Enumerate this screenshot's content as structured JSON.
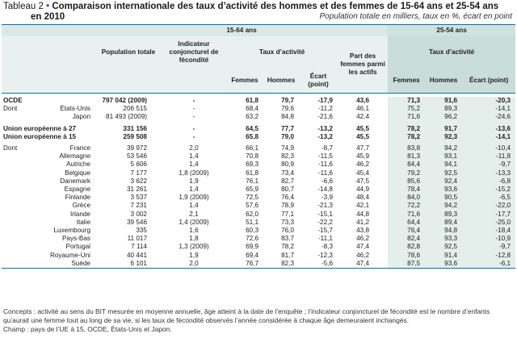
{
  "title": {
    "label": "Tableau 2",
    "bullet": "•",
    "text": "Comparaison internationale des taux d’activité des hommes et des femmes de 15-64 ans et 25-54 ans",
    "text2": "en 2010",
    "subtitle": "Population totale en milliers, taux en %, écart en point"
  },
  "headers": {
    "group1": "15-64 ans",
    "group2": "25-54 ans",
    "population": "Population totale",
    "indicateur": "Indicateur conjoncturel de fécondité",
    "taux": "Taux d’activité",
    "part": "Part des femmes parmi les actifs",
    "taux2": "Taux d’activité",
    "femmes": "Femmes",
    "hommes": "Hommes",
    "ecart": "Écart (point)",
    "femmes2": "Femmes",
    "hommes2": "Hommes",
    "ecart2": "Écart (point)"
  },
  "rows": [
    {
      "prefix": "OCDE",
      "label": "",
      "pop": "797 042 (2009)",
      "icf": "-",
      "f": "61,8",
      "h": "79,7",
      "e": "-17,9",
      "p": "43,6",
      "f2": "71,3",
      "h2": "91,6",
      "e2": "-20,3",
      "bold": true
    },
    {
      "prefix": "Dont :",
      "label": "États-Unis",
      "pop": "206 515",
      "icf": "-",
      "f": "68,4",
      "h": "79,6",
      "e": "-11,2",
      "p": "46,1",
      "f2": "75,2",
      "h2": "89,3",
      "e2": "-14,1",
      "bold": false
    },
    {
      "prefix": "",
      "label": "Japon",
      "pop": "81 493 (2009)",
      "icf": "-",
      "f": "63,2",
      "h": "84,8",
      "e": "-21,6",
      "p": "42,4",
      "f2": "71,6",
      "h2": "96,2",
      "e2": "-24,6",
      "bold": false
    },
    {
      "prefix": "Union européenne à 27",
      "label": "",
      "pop": "331 156",
      "icf": "-",
      "f": "64,5",
      "h": "77,7",
      "e": "-13,2",
      "p": "45,5",
      "f2": "78,2",
      "h2": "91,7",
      "e2": "-13,6",
      "bold": true
    },
    {
      "prefix": "Union européenne à 15",
      "label": "",
      "pop": "259 508",
      "icf": "-",
      "f": "65,8",
      "h": "79,0",
      "e": "-13,2",
      "p": "45,5",
      "f2": "78,2",
      "h2": "92,3",
      "e2": "-14,1",
      "bold": true
    },
    {
      "prefix": "Dont :",
      "label": "France",
      "pop": "39 972",
      "icf": "2,0",
      "f": "66,1",
      "h": "74,9",
      "e": "-8,7",
      "p": "47,7",
      "f2": "83,8",
      "h2": "94,2",
      "e2": "-10,4",
      "bold": false
    },
    {
      "prefix": "",
      "label": "Allemagne",
      "pop": "53 546",
      "icf": "1,4",
      "f": "70,8",
      "h": "82,3",
      "e": "-11,5",
      "p": "45,9",
      "f2": "81,3",
      "h2": "93,1",
      "e2": "-11,8",
      "bold": false
    },
    {
      "prefix": "",
      "label": "Autriche",
      "pop": "5 606",
      "icf": "1,4",
      "f": "69,3",
      "h": "80,9",
      "e": "-11,6",
      "p": "46,2",
      "f2": "84,4",
      "h2": "94,1",
      "e2": "-9,7",
      "bold": false
    },
    {
      "prefix": "",
      "label": "Belgique",
      "pop": "7 177",
      "icf": "1,8 (2009)",
      "f": "61,8",
      "h": "73,4",
      "e": "-11,6",
      "p": "45,4",
      "f2": "79,2",
      "h2": "92,5",
      "e2": "-13,3",
      "bold": false
    },
    {
      "prefix": "",
      "label": "Danemark",
      "pop": "3 622",
      "icf": "1,9",
      "f": "76,1",
      "h": "82,7",
      "e": "-6,6",
      "p": "47,5",
      "f2": "85,6",
      "h2": "92,4",
      "e2": "-6,8",
      "bold": false
    },
    {
      "prefix": "",
      "label": "Espagne",
      "pop": "31 261",
      "icf": "1,4",
      "f": "65,9",
      "h": "80,7",
      "e": "-14,8",
      "p": "44,9",
      "f2": "78,4",
      "h2": "93,6",
      "e2": "-15,2",
      "bold": false
    },
    {
      "prefix": "",
      "label": "Finlande",
      "pop": "3 537",
      "icf": "1,9 (2009)",
      "f": "72,5",
      "h": "76,4",
      "e": "-3,9",
      "p": "48,4",
      "f2": "84,0",
      "h2": "90,5",
      "e2": "-6,5",
      "bold": false
    },
    {
      "prefix": "",
      "label": "Grèce",
      "pop": "7 231",
      "icf": "1,4",
      "f": "57,6",
      "h": "78,9",
      "e": "-21,3",
      "p": "42,1",
      "f2": "72,2",
      "h2": "94,2",
      "e2": "-22,0",
      "bold": false
    },
    {
      "prefix": "",
      "label": "Irlande",
      "pop": "3 002",
      "icf": "2,1",
      "f": "62,0",
      "h": "77,1",
      "e": "-15,1",
      "p": "44,8",
      "f2": "71,6",
      "h2": "89,3",
      "e2": "-17,7",
      "bold": false
    },
    {
      "prefix": "",
      "label": "Italie",
      "pop": "39 546",
      "icf": "1,4 (2009)",
      "f": "51,1",
      "h": "73,3",
      "e": "-22,2",
      "p": "41,2",
      "f2": "64,4",
      "h2": "89,4",
      "e2": "-25,0",
      "bold": false
    },
    {
      "prefix": "",
      "label": "Luxembourg",
      "pop": "335",
      "icf": "1,6",
      "f": "60,3",
      "h": "76,0",
      "e": "-15,7",
      "p": "43,8",
      "f2": "76,4",
      "h2": "94,8",
      "e2": "-18,4",
      "bold": false
    },
    {
      "prefix": "",
      "label": "Pays-Bas",
      "pop": "11 017",
      "icf": "1,8",
      "f": "72,6",
      "h": "83,7",
      "e": "-11,1",
      "p": "46,2",
      "f2": "82,4",
      "h2": "93,3",
      "e2": "-10,9",
      "bold": false
    },
    {
      "prefix": "",
      "label": "Portugal",
      "pop": "7 114",
      "icf": "1,3 (2009)",
      "f": "69,9",
      "h": "78,2",
      "e": "-8,3",
      "p": "47,4",
      "f2": "82,8",
      "h2": "92,5",
      "e2": "-9,7",
      "bold": false
    },
    {
      "prefix": "",
      "label": "Royaume-Uni",
      "pop": "40 441",
      "icf": "1,9",
      "f": "69,4",
      "h": "81,7",
      "e": "-12,3",
      "p": "46,2",
      "f2": "78,6",
      "h2": "91,4",
      "e2": "-12,8",
      "bold": false
    },
    {
      "prefix": "",
      "label": "Suède",
      "pop": "6 101",
      "icf": "2,0",
      "f": "76,7",
      "h": "82,3",
      "e": "-5,6",
      "p": "47,4",
      "f2": "87,5",
      "h2": "93,6",
      "e2": "-6,1",
      "bold": false
    }
  ],
  "notes": {
    "concepts": "Concepts : activité au sens du BIT mesurée en moyenne annuelle, âge atteint à la date de l’enquête ; l’indicateur conjoncturel de fécondité est le nombre d’enfants qu’aurait une femme tout au long de sa vie, si les taux de fécondité observés l’année considérée à chaque âge demeuraient inchangés.",
    "champ": "Champ : pays de l’UE à 15, OCDE, États-Unis et Japon."
  }
}
